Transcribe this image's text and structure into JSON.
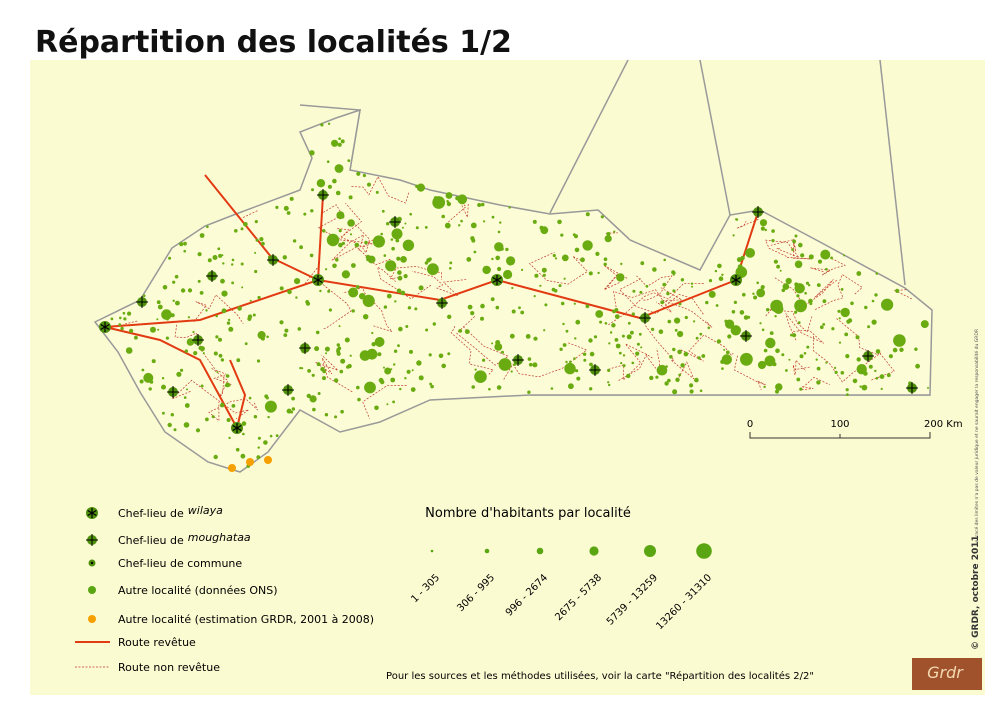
{
  "title": "Répartition des localités 1/2",
  "legend": {
    "items": [
      {
        "label": "Chef-lieu de",
        "emphasis": "wilaya"
      },
      {
        "label": "Chef-lieu de",
        "emphasis": "moughataa"
      },
      {
        "label": "Chef-lieu de commune"
      },
      {
        "label": "Autre localité (données ONS)"
      },
      {
        "label": "Autre localité (estimation GRDR, 2001 à 2008)"
      },
      {
        "label": "Route revêtue"
      },
      {
        "label": "Route non revêtue"
      }
    ]
  },
  "size_legend": {
    "title": "Nombre d'habitants par localité",
    "classes": [
      "1 - 305",
      "306 - 995",
      "996 - 2674",
      "2675 - 5738",
      "5739 - 13259",
      "13260 - 31310"
    ]
  },
  "scale_bar": {
    "labels": [
      "0",
      "100",
      "200 Km"
    ]
  },
  "note": "Pour les sources et les méthodes utilisées, voir la carte \"Répartition des localités 2/2\"",
  "credit": "© GRDR, octobre 2011",
  "disclaimer": "Le tracé des limites n'a pas de valeur juridique et ne saurait engager la responsabilité du GRDR",
  "logo": "Grdr"
}
